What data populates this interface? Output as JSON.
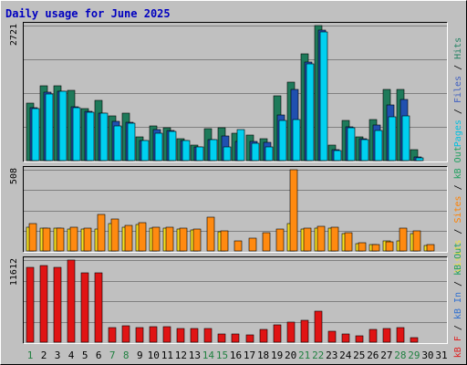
{
  "chart_data": {
    "type": "bar",
    "title": "Daily usage for June 2025",
    "days": [
      "1",
      "2",
      "3",
      "4",
      "5",
      "6",
      "7",
      "8",
      "9",
      "10",
      "11",
      "12",
      "13",
      "14",
      "15",
      "16",
      "17",
      "18",
      "19",
      "20",
      "21",
      "22",
      "23",
      "24",
      "25",
      "26",
      "27",
      "28",
      "29",
      "30",
      "31"
    ],
    "weekend_days": [
      "1",
      "7",
      "8",
      "14",
      "15",
      "21",
      "22",
      "28",
      "29"
    ],
    "panels": [
      {
        "id": "top",
        "ymax_label": "2721",
        "ymax": 2721,
        "right_label": [
          "Pages",
          " / ",
          "Files",
          " / ",
          "Hits"
        ],
        "right_colors": [
          "#00c0e0",
          "#000000",
          "#4060c0",
          "#000000",
          "#208060"
        ],
        "series": [
          {
            "name": "Hits",
            "color": "#1e7a5a",
            "values": [
              1150,
              1510,
              1510,
              1420,
              1050,
              1220,
              900,
              960,
              480,
              690,
              660,
              450,
              310,
              650,
              660,
              560,
              510,
              440,
              1310,
              1590,
              2150,
              2721,
              310,
              800,
              470,
              820,
              1440,
              1440,
              220,
              0,
              0
            ]
          },
          {
            "name": "Files",
            "color": "#2050b0",
            "values": [
              1060,
              1380,
              1400,
              1080,
              990,
              960,
              790,
              770,
              400,
              620,
              600,
              400,
              270,
              420,
              490,
              390,
              390,
              370,
              920,
              1430,
              1980,
              2630,
              220,
              680,
              440,
              720,
              1120,
              1240,
              80,
              0,
              0
            ]
          },
          {
            "name": "Pages",
            "color": "#00d0f0",
            "values": [
              1040,
              1340,
              1400,
              1060,
              980,
              950,
              690,
              750,
              400,
              560,
              590,
              400,
              270,
              430,
              280,
              630,
              350,
              280,
              800,
              820,
              1940,
              2600,
              210,
              660,
              420,
              600,
              880,
              910,
              60,
              0,
              0
            ]
          }
        ]
      },
      {
        "id": "mid",
        "ymax_label": "508",
        "ymax": 508,
        "right_label": [
          "Visits",
          " / ",
          "Sites",
          " / ",
          "kB Out"
        ],
        "right_colors": [
          "#f0e040",
          "#000000",
          "#ff8000",
          "#000000",
          "#20a060"
        ],
        "series": [
          {
            "name": "Visits",
            "color": "#f8e020",
            "values": [
              150,
              140,
              140,
              135,
              135,
              135,
              170,
              150,
              165,
              140,
              140,
              135,
              130,
              0,
              120,
              0,
              0,
              0,
              0,
              170,
              135,
              140,
              140,
              110,
              45,
              40,
              60,
              65,
              110,
              35,
              0
            ]
          },
          {
            "name": "Sites",
            "color": "#ff8a10",
            "values": [
              170,
              145,
              145,
              150,
              145,
              230,
              200,
              160,
              175,
              150,
              150,
              145,
              135,
              210,
              125,
              60,
              80,
              115,
              135,
              508,
              145,
              155,
              150,
              115,
              50,
              40,
              55,
              140,
              125,
              40,
              0
            ]
          }
        ]
      },
      {
        "id": "bot",
        "ymax_label": "11612",
        "ymax": 11612,
        "right_label": [
          "kB F",
          " / ",
          "kB In",
          " / ",
          "kB Out"
        ],
        "right_colors": [
          "#e02020",
          "#000000",
          "#3070d0",
          "#000000",
          "#20a060"
        ],
        "series": [
          {
            "name": "kB F",
            "color": "#e01414",
            "values": [
              10600,
              10900,
              10600,
              11612,
              9800,
              9800,
              2100,
              2350,
              2100,
              2250,
              2250,
              1900,
              1950,
              1900,
              1200,
              1100,
              1050,
              1800,
              2500,
              2900,
              3100,
              4400,
              1600,
              1100,
              850,
              1800,
              1950,
              2100,
              700,
              0,
              0
            ]
          }
        ]
      }
    ]
  }
}
